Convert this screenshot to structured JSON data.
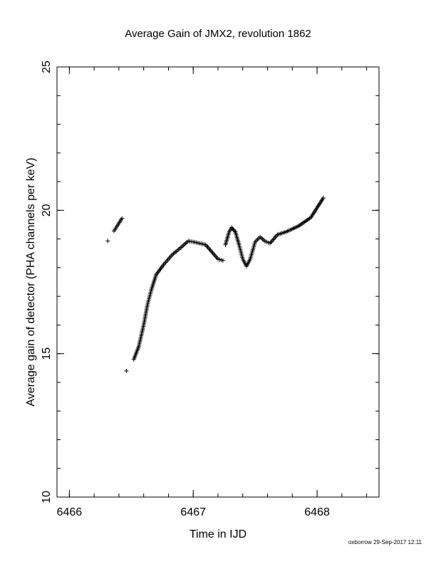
{
  "chart_data": {
    "type": "scatter",
    "title": "Average Gain of JMX2, revolution 1862",
    "xlabel": "Time in IJD",
    "ylabel": "Average gain of detector (PHA channels per keV)",
    "xlim": [
      6465.9,
      6468.5
    ],
    "ylim": [
      10,
      25
    ],
    "x_ticks": [
      6466,
      6467,
      6468
    ],
    "y_ticks": [
      10,
      15,
      20,
      25
    ],
    "x_minor_step": 0.2,
    "y_minor_step": 1,
    "grid": false,
    "marker": "+",
    "marker_color": "#000000",
    "curve_points": [
      [
        6466.31,
        18.93
      ],
      [
        6466.36,
        19.28
      ],
      [
        6466.39,
        19.48
      ],
      [
        6466.425,
        19.72
      ],
      [
        6466.46,
        14.4
      ],
      [
        6466.52,
        14.8
      ],
      [
        6466.56,
        15.25
      ],
      [
        6466.6,
        16.0
      ],
      [
        6466.63,
        16.7
      ],
      [
        6466.66,
        17.2
      ],
      [
        6466.7,
        17.75
      ],
      [
        6466.76,
        18.1
      ],
      [
        6466.83,
        18.45
      ],
      [
        6466.9,
        18.7
      ],
      [
        6466.96,
        18.93
      ],
      [
        6467.0,
        18.9
      ],
      [
        6467.05,
        18.85
      ],
      [
        6467.1,
        18.8
      ],
      [
        6467.15,
        18.55
      ],
      [
        6467.2,
        18.3
      ],
      [
        6467.24,
        18.25
      ],
      [
        6467.26,
        18.8
      ],
      [
        6467.29,
        19.25
      ],
      [
        6467.31,
        19.4
      ],
      [
        6467.34,
        19.25
      ],
      [
        6467.37,
        18.8
      ],
      [
        6467.4,
        18.3
      ],
      [
        6467.43,
        18.05
      ],
      [
        6467.46,
        18.3
      ],
      [
        6467.5,
        18.9
      ],
      [
        6467.54,
        19.07
      ],
      [
        6467.58,
        18.92
      ],
      [
        6467.62,
        18.85
      ],
      [
        6467.68,
        19.15
      ],
      [
        6467.75,
        19.25
      ],
      [
        6467.85,
        19.45
      ],
      [
        6467.95,
        19.75
      ],
      [
        6468.05,
        20.43
      ]
    ]
  },
  "footer": {
    "text": "oxborrow 29-Sep-2017 12:11"
  }
}
